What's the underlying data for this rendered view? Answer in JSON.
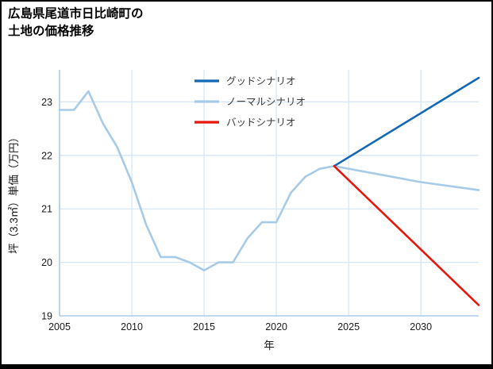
{
  "page": {
    "title_line1": "広島県尾道市日比崎町の",
    "title_line2": "土地の価格推移"
  },
  "chart_data": {
    "type": "line",
    "title": "広島県尾道市日比崎町の土地の価格推移",
    "xlabel": "年",
    "ylabel": "坪（3.3㎡）単価（万円）",
    "xlim": [
      2005,
      2034
    ],
    "ylim": [
      19,
      23.6
    ],
    "xticks": [
      2005,
      2010,
      2015,
      2020,
      2025,
      2030
    ],
    "yticks": [
      19,
      20,
      21,
      22,
      23
    ],
    "grid": true,
    "legend_position": "top-center-inside",
    "colors": {
      "good": "#1168b5",
      "normal": "#a6cbe9",
      "bad": "#e8170d",
      "grid_line": "#d6e6f5",
      "spine": "#aecde9",
      "tick_text": "#1a1a1a",
      "legend_text": "#3a3a3a"
    },
    "series": [
      {
        "name": "グッドシナリオ",
        "color": "#1168b5",
        "points": [
          [
            2024,
            21.8
          ],
          [
            2034,
            23.45
          ]
        ]
      },
      {
        "name": "ノーマルシナリオ",
        "color": "#a6cbe9",
        "points": [
          [
            2005,
            22.85
          ],
          [
            2006,
            22.85
          ],
          [
            2007,
            23.2
          ],
          [
            2008,
            22.6
          ],
          [
            2009,
            22.15
          ],
          [
            2010,
            21.5
          ],
          [
            2011,
            20.7
          ],
          [
            2012,
            20.1
          ],
          [
            2013,
            20.1
          ],
          [
            2014,
            20.0
          ],
          [
            2015,
            19.85
          ],
          [
            2016,
            20.0
          ],
          [
            2017,
            20.0
          ],
          [
            2018,
            20.45
          ],
          [
            2019,
            20.75
          ],
          [
            2020,
            20.75
          ],
          [
            2021,
            21.3
          ],
          [
            2022,
            21.6
          ],
          [
            2023,
            21.75
          ],
          [
            2024,
            21.8
          ],
          [
            2027,
            21.65
          ],
          [
            2030,
            21.5
          ],
          [
            2034,
            21.35
          ]
        ]
      },
      {
        "name": "バッドシナリオ",
        "color": "#e8170d",
        "points": [
          [
            2024,
            21.8
          ],
          [
            2034,
            19.2
          ]
        ]
      }
    ]
  }
}
